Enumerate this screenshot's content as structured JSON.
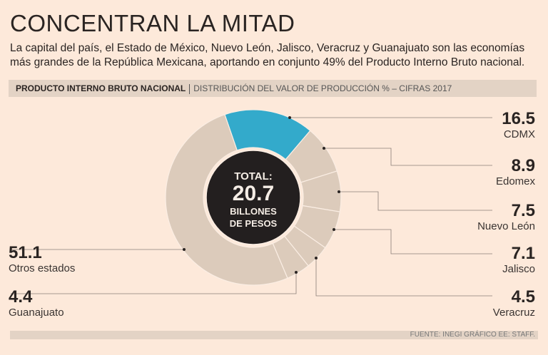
{
  "header": {
    "title": "CONCENTRAN LA MITAD",
    "subtitle": "La capital del país, el Estado de México, Nuevo León, Jalisco, Veracruz y Guanajuato son las economías más grandes de la República Mexicana, aportando en conjunto 49% del Producto Interno Bruto nacional."
  },
  "band": {
    "bold": "PRODUCTO INTERNO BRUTO NACIONAL",
    "rest": "DISTRIBUCIÓN DEL VALOR DE PRODUCCIÓN % – CIFRAS 2017"
  },
  "center": {
    "l1": "TOTAL:",
    "l2": "20.7",
    "l3": "BILLONES",
    "l4": "DE PESOS"
  },
  "footer": "FUENTE: INEGI GRÁFICO EE: STAFF.",
  "colors": {
    "highlight": "#33aacb",
    "slice": "#dccbbb",
    "center": "#231f1f",
    "bg": "#fde9da"
  },
  "chart_data": {
    "type": "pie",
    "title": "PRODUCTO INTERNO BRUTO NACIONAL",
    "subtitle": "DISTRIBUCIÓN DEL VALOR DE PRODUCCIÓN % – CIFRAS 2017",
    "categories": [
      "CDMX",
      "Edomex",
      "Nuevo León",
      "Jalisco",
      "Veracruz",
      "Guanajuato",
      "Otros estados"
    ],
    "values": [
      16.5,
      8.9,
      7.5,
      7.1,
      4.5,
      4.4,
      51.1
    ],
    "labels": [
      "16.5",
      "8.9",
      "7.5",
      "7.1",
      "4.5",
      "4.4",
      "51.1"
    ],
    "total_label": "20.7"
  }
}
